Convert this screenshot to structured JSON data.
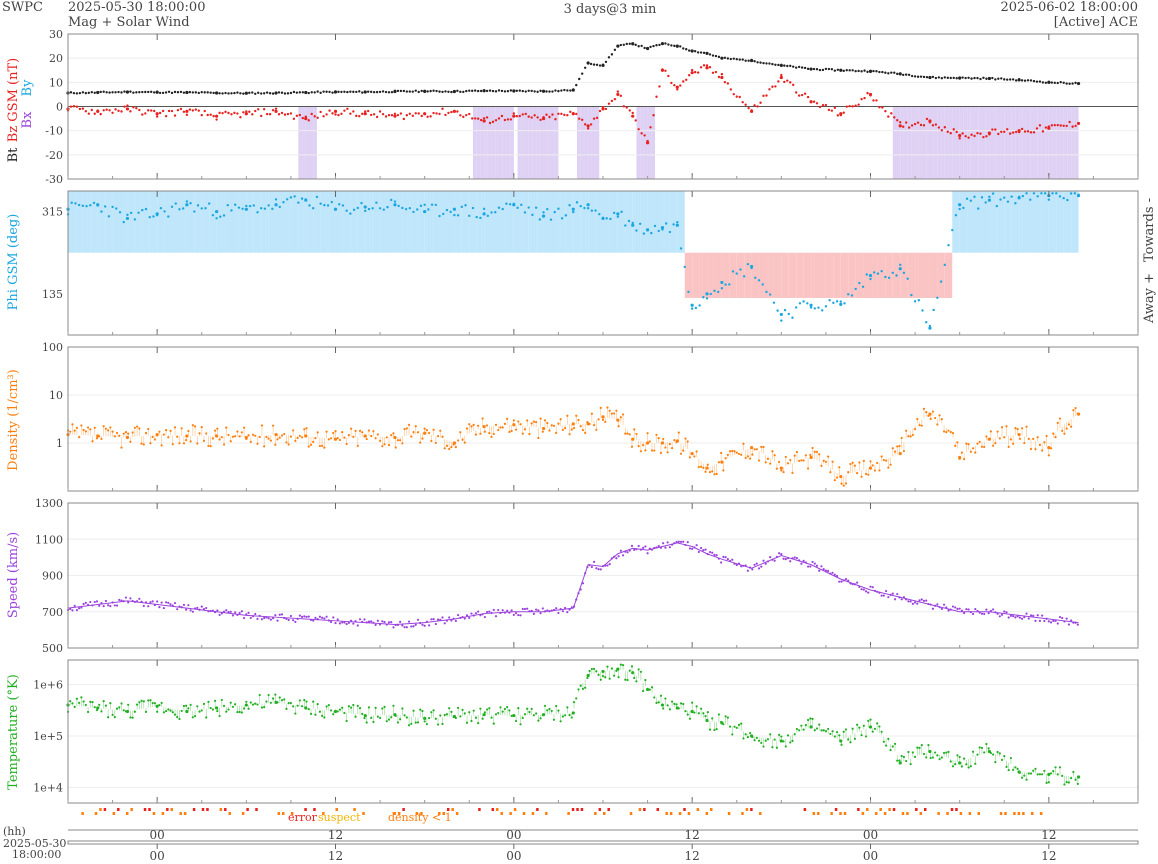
{
  "header": {
    "left_brand": "SWPC",
    "start_time": "2025-05-30 18:00:00",
    "subtitle": "Mag + Solar Wind",
    "span_label": "3 days@3 min",
    "end_time": "2025-06-02 18:00:00",
    "source": "[Active] ACE"
  },
  "footer": {
    "hh_label": "(hh)",
    "date_label": "2025-05-30",
    "time_label": "18:00:00",
    "legend": [
      {
        "label": "error",
        "color": "#e8211f"
      },
      {
        "label": "suspect",
        "color": "#f0b400"
      },
      {
        "label": "density < 1",
        "color": "#ff7f0e"
      }
    ]
  },
  "colors": {
    "bt": "#222222",
    "bz": "#e8211f",
    "phi": "#1aa7e0",
    "towards_fill": "#bfe6fb",
    "away_fill": "#fbc4c4",
    "bz_south_fill": "#d9c9f2",
    "density": "#ff7f0e",
    "speed": "#9b42dd",
    "temperature": "#22b022"
  },
  "chart_data": [
    {
      "type": "scatter",
      "ylabel_parts": [
        {
          "text": "Bt",
          "color": "#222222"
        },
        {
          "text": "Bz GSM (nT)",
          "color": "#e8211f"
        }
      ],
      "side_labels": [
        "Bx",
        "By"
      ],
      "ylim": [
        -30,
        30
      ],
      "yticks": [
        30,
        20,
        10,
        0,
        -10,
        -20,
        -30
      ],
      "x_hours": [
        0,
        2,
        4,
        6,
        8,
        10,
        12,
        14,
        16,
        18,
        20,
        22,
        24,
        26,
        28,
        30,
        32,
        34,
        35,
        36,
        37,
        38,
        39,
        40,
        41,
        42,
        43,
        44,
        46,
        48,
        50,
        52,
        54,
        56,
        58,
        60,
        62,
        64,
        66,
        68
      ],
      "series": [
        {
          "values": [
            5.6,
            5.8,
            6.0,
            5.9,
            5.8,
            5.6,
            5.5,
            5.6,
            5.8,
            6.0,
            6.0,
            6.2,
            6.3,
            6.2,
            6.5,
            6.4,
            6.3,
            6.8,
            18,
            17,
            25,
            26,
            24,
            26,
            25,
            23,
            22,
            20,
            19,
            17,
            15.5,
            15,
            14.6,
            13.5,
            12,
            11.8,
            11.6,
            11,
            10,
            9.5
          ]
        },
        {
          "values": [
            -1,
            -2,
            -1,
            -3,
            -2,
            -4,
            -3,
            -2,
            -5,
            -2,
            -3,
            -4,
            -3,
            -2,
            -6,
            -4,
            -5,
            -3,
            -8,
            -1,
            5,
            -4,
            -15,
            15,
            8,
            14,
            16,
            12,
            -2,
            12,
            2,
            -3,
            5,
            -8,
            -6,
            -12,
            -11,
            -10,
            -9,
            -7
          ]
        }
      ]
    },
    {
      "type": "scatter",
      "ylabel": "Phi GSM (deg)",
      "yticks": [
        315,
        135
      ],
      "ylim": [
        45,
        360
      ],
      "side_labels": [
        "Towards -",
        "Away +"
      ],
      "x_hours": [
        0,
        2,
        4,
        6,
        8,
        10,
        12,
        14,
        16,
        18,
        20,
        22,
        24,
        26,
        28,
        30,
        32,
        34,
        35,
        36,
        37,
        38,
        39,
        40,
        41,
        42,
        43,
        44,
        46,
        48,
        50,
        52,
        54,
        56,
        58,
        60,
        62,
        64,
        66,
        68
      ],
      "values": [
        320,
        330,
        300,
        310,
        330,
        315,
        320,
        330,
        340,
        320,
        325,
        330,
        315,
        320,
        310,
        330,
        305,
        320,
        330,
        300,
        310,
        285,
        275,
        280,
        285,
        110,
        135,
        160,
        195,
        90,
        110,
        112,
        175,
        190,
        60,
        330,
        340,
        345,
        350,
        350
      ]
    },
    {
      "type": "scatter",
      "ylabel": "Density (1/cm³)",
      "scale": "log",
      "ylim": [
        0.1,
        100
      ],
      "yticks": [
        100,
        10,
        1
      ],
      "x_hours": [
        0,
        2,
        4,
        6,
        8,
        10,
        12,
        14,
        16,
        18,
        20,
        22,
        24,
        26,
        28,
        30,
        32,
        34,
        35,
        36,
        37,
        38,
        39,
        40,
        41,
        42,
        43,
        44,
        46,
        48,
        50,
        52,
        54,
        56,
        58,
        60,
        62,
        64,
        66,
        68
      ],
      "values": [
        1.5,
        1.4,
        1.3,
        1.5,
        1.4,
        1.4,
        1.3,
        1.5,
        1.4,
        1.2,
        1.4,
        1.3,
        1.6,
        1.0,
        2.2,
        2.4,
        2.0,
        2.5,
        2.5,
        3.5,
        3.0,
        1.2,
        1.0,
        1.0,
        1.1,
        0.6,
        0.3,
        0.4,
        0.8,
        0.3,
        0.5,
        0.2,
        0.3,
        0.6,
        4.0,
        0.5,
        1.2,
        1.5,
        0.8,
        4.0
      ]
    },
    {
      "type": "line",
      "ylabel": "Speed (km/s)",
      "ylim": [
        500,
        1300
      ],
      "yticks": [
        1300,
        1100,
        900,
        700,
        500
      ],
      "x_hours": [
        0,
        2,
        4,
        6,
        8,
        10,
        12,
        14,
        16,
        18,
        20,
        22,
        24,
        26,
        28,
        30,
        32,
        34,
        35,
        36,
        37,
        38,
        39,
        40,
        41,
        42,
        43,
        44,
        46,
        48,
        50,
        52,
        54,
        56,
        58,
        60,
        62,
        64,
        66,
        68
      ],
      "values": [
        720,
        740,
        760,
        740,
        720,
        700,
        680,
        670,
        660,
        650,
        640,
        630,
        640,
        660,
        690,
        700,
        700,
        720,
        960,
        950,
        1020,
        1050,
        1040,
        1060,
        1080,
        1060,
        1020,
        990,
        940,
        1010,
        960,
        880,
        820,
        780,
        740,
        700,
        700,
        680,
        660,
        640
      ]
    },
    {
      "type": "line",
      "ylabel": "Temperature (°K)",
      "scale": "log",
      "ylim": [
        5000,
        3000000
      ],
      "yticks": [
        {
          "value": 1000000,
          "label": "1e+6"
        },
        {
          "value": 100000,
          "label": "1e+5"
        },
        {
          "value": 10000,
          "label": "1e+4"
        }
      ],
      "x_hours": [
        0,
        2,
        4,
        6,
        8,
        10,
        12,
        14,
        16,
        18,
        20,
        22,
        24,
        26,
        28,
        30,
        32,
        34,
        35,
        36,
        37,
        38,
        39,
        40,
        41,
        42,
        43,
        44,
        46,
        48,
        50,
        52,
        54,
        56,
        58,
        60,
        62,
        64,
        66,
        68
      ],
      "values": [
        400000,
        350000,
        300000,
        380000,
        300000,
        350000,
        400000,
        450000,
        350000,
        300000,
        250000,
        260000,
        220000,
        240000,
        260000,
        250000,
        260000,
        280000,
        1500000,
        1800000,
        2000000,
        1700000,
        800000,
        400000,
        350000,
        300000,
        200000,
        180000,
        100000,
        80000,
        150000,
        80000,
        150000,
        30000,
        50000,
        30000,
        50000,
        20000,
        18000,
        16000
      ]
    }
  ],
  "x_axis": {
    "tick_labels": [
      {
        "hour": 6,
        "label": "00"
      },
      {
        "hour": 18,
        "label": "12"
      },
      {
        "hour": 30,
        "label": "00"
      },
      {
        "hour": 42,
        "label": "12"
      },
      {
        "hour": 54,
        "label": "00"
      },
      {
        "hour": 66,
        "label": "12"
      }
    ],
    "range_hours": [
      0,
      72
    ]
  }
}
